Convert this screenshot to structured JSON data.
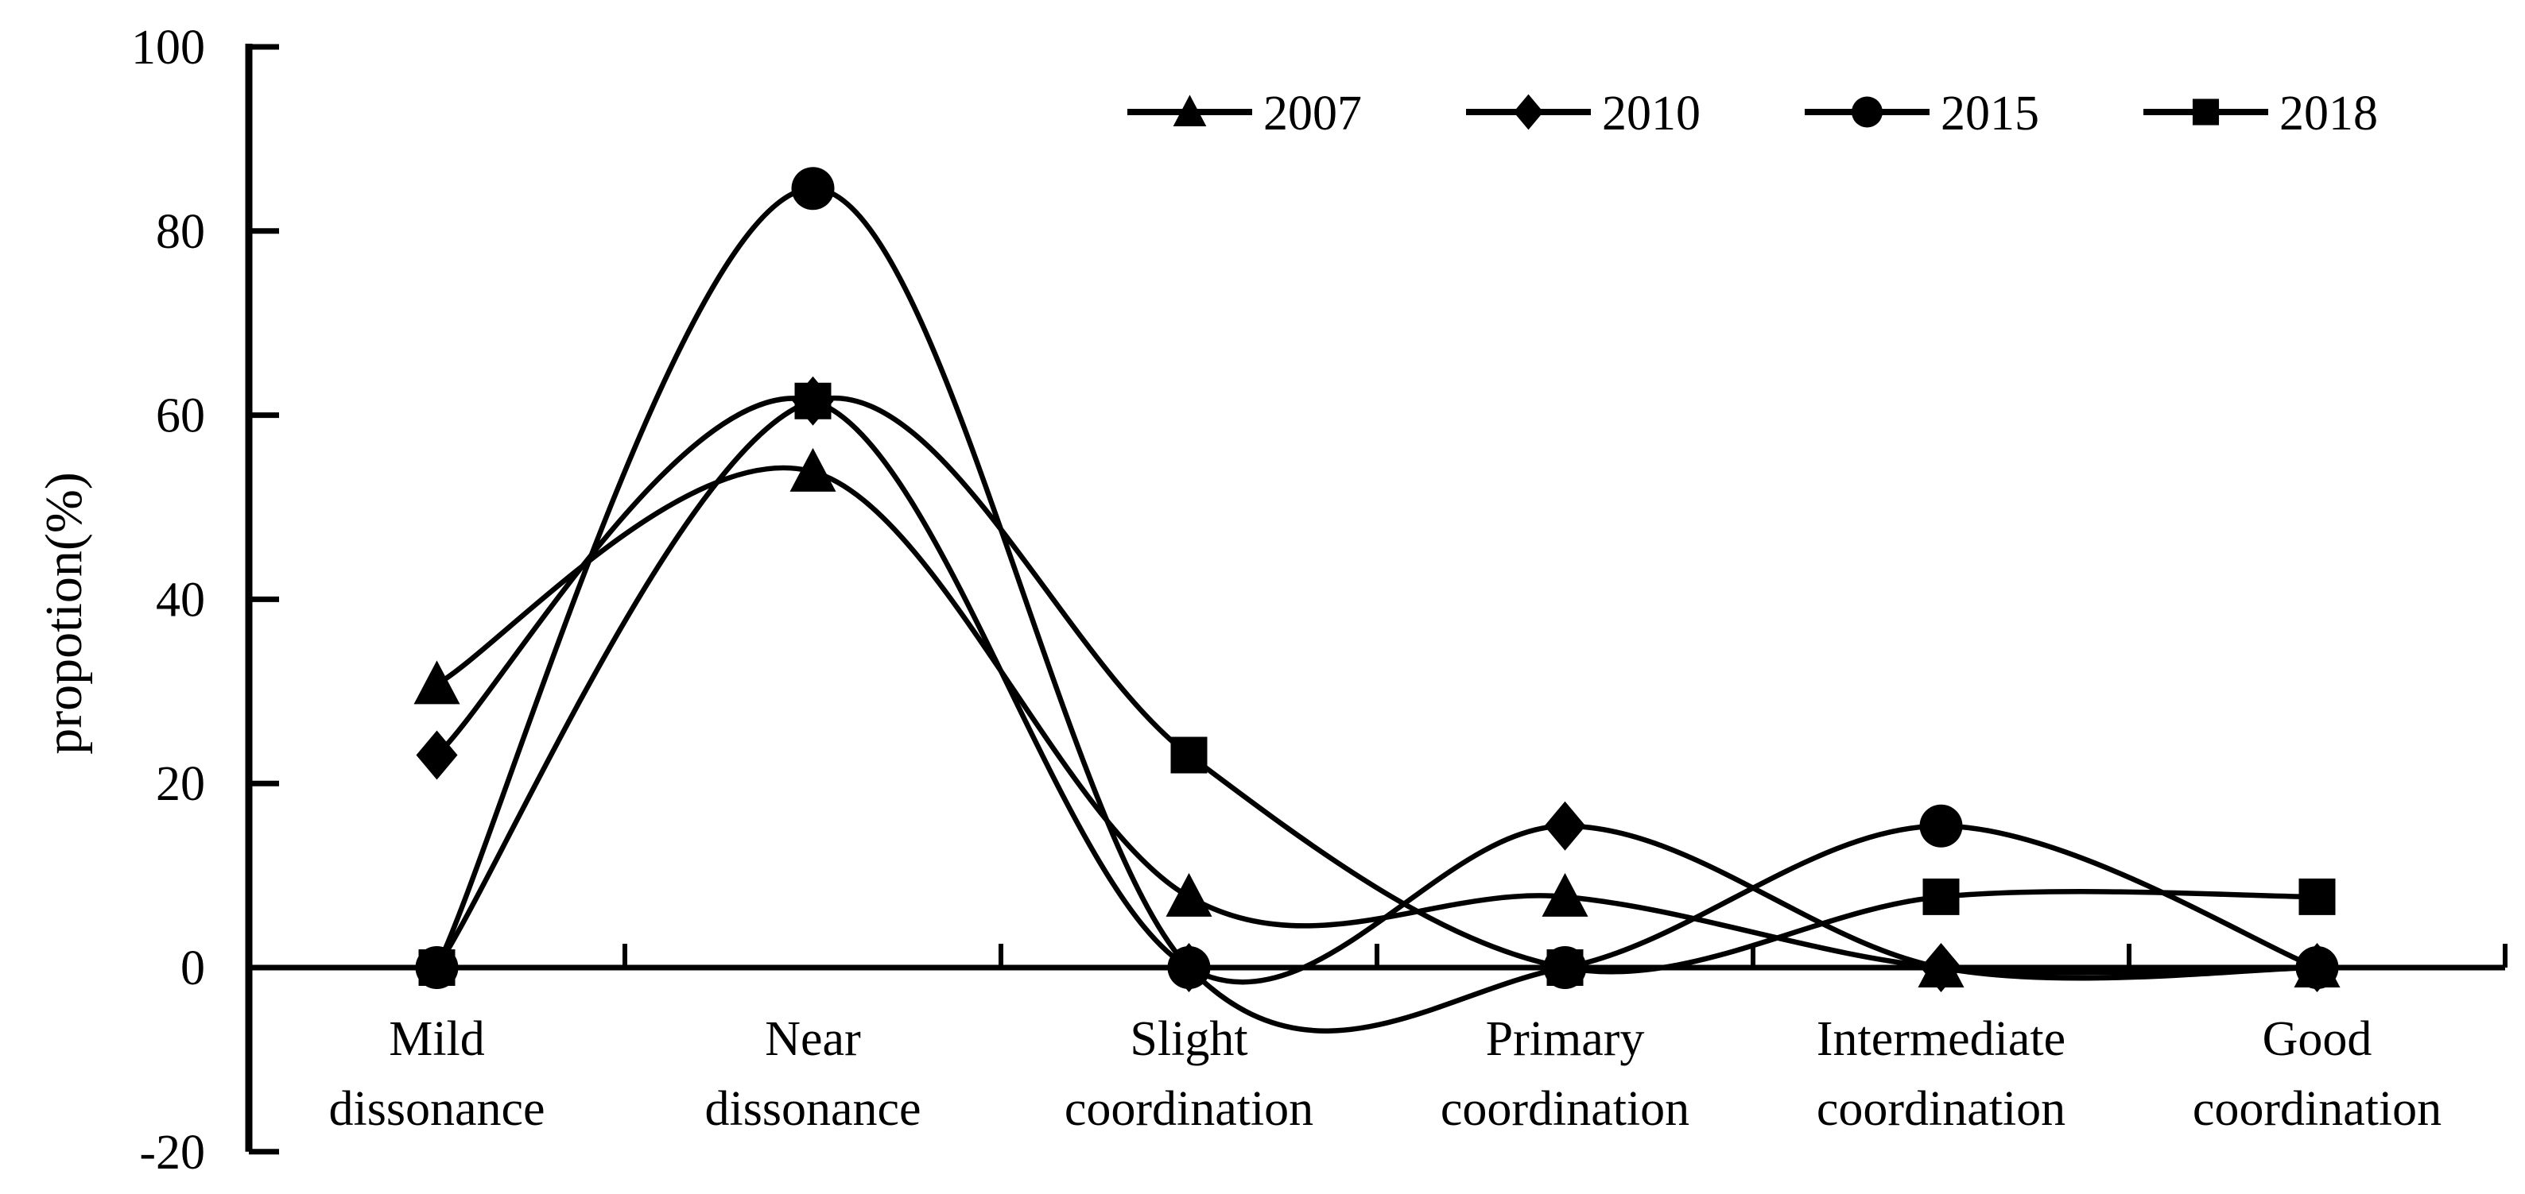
{
  "chart_data": {
    "type": "line",
    "title": "",
    "xlabel": "",
    "ylabel": "propotion(%)",
    "categories": [
      [
        "Mild",
        "dissonance"
      ],
      [
        "Near",
        "dissonance"
      ],
      [
        "Slight",
        "coordination"
      ],
      [
        "Primary",
        "coordination"
      ],
      [
        "Intermediate",
        "coordination"
      ],
      [
        "Good",
        "coordination"
      ]
    ],
    "ylim": [
      -20,
      100
    ],
    "yticks": [
      100,
      80,
      60,
      40,
      20,
      0,
      -20
    ],
    "grid": false,
    "smooth_lines": true,
    "line_color": "#000000",
    "background_color": "#ffffff",
    "legend_position": "top-right-row",
    "series": [
      {
        "name": "2007",
        "marker": "triangle",
        "values": [
          30.77,
          53.85,
          7.69,
          7.69,
          0,
          0
        ]
      },
      {
        "name": "2010",
        "marker": "diamond",
        "values": [
          23.08,
          61.54,
          0,
          15.38,
          0,
          0
        ]
      },
      {
        "name": "2015",
        "marker": "circle",
        "values": [
          0,
          84.62,
          0,
          0,
          15.38,
          0
        ]
      },
      {
        "name": "2018",
        "marker": "square",
        "values": [
          0,
          61.54,
          23.08,
          0,
          7.69,
          7.69
        ]
      }
    ],
    "marker_draw_order": [
      "2007",
      "2010",
      "2018",
      "2015"
    ]
  }
}
